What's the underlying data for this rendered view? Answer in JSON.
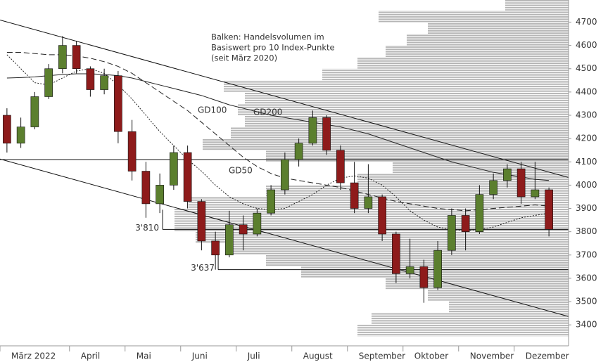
{
  "chart_data": {
    "type": "candlestick",
    "categories": [
      "März 2022",
      null,
      null,
      null,
      null,
      "April",
      null,
      null,
      null,
      "Mai",
      null,
      null,
      null,
      "Juni",
      null,
      null,
      null,
      "Juli",
      null,
      null,
      null,
      "August",
      null,
      null,
      null,
      "September",
      null,
      null,
      null,
      "Oktober",
      null,
      null,
      null,
      "November",
      null,
      null,
      null,
      "Dezember",
      null,
      null
    ],
    "open": [
      4300,
      4180,
      4250,
      4380,
      4500,
      4600,
      4500,
      4410,
      4470,
      4230,
      4060,
      3920,
      4000,
      4140,
      3930,
      3760,
      3700,
      3830,
      3790,
      3880,
      3980,
      4110,
      4180,
      4290,
      4150,
      4010,
      3900,
      3950,
      3790,
      3620,
      3650,
      3560,
      3720,
      3870,
      3800,
      3960,
      4020,
      4070,
      3950,
      3980
    ],
    "high": [
      4330,
      4290,
      4400,
      4520,
      4640,
      4620,
      4510,
      4500,
      4490,
      4280,
      4100,
      4050,
      4170,
      4170,
      3940,
      3800,
      3890,
      3870,
      3900,
      4000,
      4140,
      4200,
      4320,
      4300,
      4170,
      4100,
      4090,
      3960,
      3800,
      3770,
      3680,
      3760,
      3900,
      3900,
      4000,
      4050,
      4090,
      4100,
      4100,
      3990
    ],
    "low": [
      4140,
      4160,
      4240,
      4370,
      4480,
      4480,
      4380,
      4390,
      4180,
      4020,
      3860,
      3880,
      3980,
      3900,
      3720,
      3637,
      3690,
      3720,
      3780,
      3870,
      3960,
      4080,
      4170,
      4130,
      3980,
      3880,
      3880,
      3760,
      3580,
      3600,
      3495,
      3550,
      3700,
      3720,
      3790,
      3940,
      3990,
      3920,
      3940,
      3780
    ],
    "close": [
      4180,
      4250,
      4380,
      4500,
      4600,
      4500,
      4410,
      4470,
      4230,
      4060,
      3920,
      4000,
      4140,
      3930,
      3760,
      3700,
      3830,
      3790,
      3880,
      3980,
      4110,
      4180,
      4290,
      4150,
      4010,
      3900,
      3950,
      3790,
      3620,
      3650,
      3560,
      3720,
      3870,
      3800,
      3960,
      4020,
      4070,
      3950,
      3980,
      3810
    ],
    "up_color": "#5b7f2e",
    "down_color": "#8e1b1b",
    "series": [
      {
        "name": "GD50",
        "style": "dotted",
        "color": "#222222",
        "values": [
          4560,
          4500,
          4440,
          4430,
          4460,
          4490,
          4500,
          4480,
          4430,
          4370,
          4300,
          4230,
          4170,
          4110,
          4060,
          4000,
          3950,
          3920,
          3900,
          3895,
          3900,
          3930,
          3960,
          4000,
          4030,
          4040,
          4030,
          4000,
          3950,
          3890,
          3850,
          3820,
          3810,
          3805,
          3810,
          3820,
          3840,
          3860,
          3870,
          3880
        ]
      },
      {
        "name": "GD100",
        "style": "dashed",
        "color": "#222222",
        "values": [
          4570,
          4570,
          4565,
          4560,
          4560,
          4555,
          4545,
          4530,
          4510,
          4480,
          4440,
          4400,
          4360,
          4320,
          4270,
          4220,
          4170,
          4120,
          4080,
          4050,
          4030,
          4020,
          4010,
          4000,
          3990,
          3975,
          3960,
          3945,
          3930,
          3920,
          3910,
          3900,
          3895,
          3890,
          3895,
          3900,
          3905,
          3910,
          3915,
          3910
        ]
      },
      {
        "name": "GD200",
        "style": "solid",
        "color": "#222222",
        "values": [
          4460,
          4462,
          4465,
          4470,
          4475,
          4478,
          4478,
          4475,
          4470,
          4460,
          4445,
          4430,
          4415,
          4400,
          4385,
          4365,
          4345,
          4330,
          4315,
          4300,
          4290,
          4280,
          4270,
          4260,
          4250,
          4235,
          4220,
          4200,
          4180,
          4160,
          4140,
          4120,
          4100,
          4085,
          4070,
          4055,
          4045,
          4035,
          4025,
          4020
        ]
      }
    ],
    "volume_profile": {
      "bins": [
        3350,
        3400,
        3450,
        3500,
        3550,
        3600,
        3650,
        3700,
        3750,
        3800,
        3850,
        3900,
        3950,
        4000,
        4050,
        4100,
        4150,
        4200,
        4250,
        4300,
        4350,
        4400,
        4450,
        4500,
        4550,
        4600,
        4650,
        4700,
        4750,
        4800
      ],
      "counts": [
        300,
        280,
        170,
        200,
        260,
        380,
        430,
        480,
        530,
        560,
        560,
        540,
        430,
        300,
        250,
        430,
        520,
        480,
        460,
        470,
        460,
        490,
        350,
        300,
        260,
        230,
        200,
        270,
        90
      ],
      "color": "#b5b5b5"
    },
    "note": [
      "Balken: Handelsvolumen im",
      "Basiswert pro 10 Index-Punkte",
      "(seit März 2020)"
    ],
    "trendlines": [
      {
        "start": 4709,
        "end": 4033
      },
      {
        "start": 4112,
        "end": 3436
      }
    ],
    "levels": [
      {
        "value": 4110
      },
      {
        "value": 3810,
        "label": "3'810",
        "start": 11
      },
      {
        "value": 3637,
        "label": "3'637",
        "start": 15
      }
    ],
    "ylim": [
      3310,
      4795
    ],
    "yticks": [
      3400,
      3500,
      3600,
      3700,
      3800,
      3900,
      4000,
      4100,
      4200,
      4300,
      4400,
      4500,
      4600,
      4700
    ]
  }
}
